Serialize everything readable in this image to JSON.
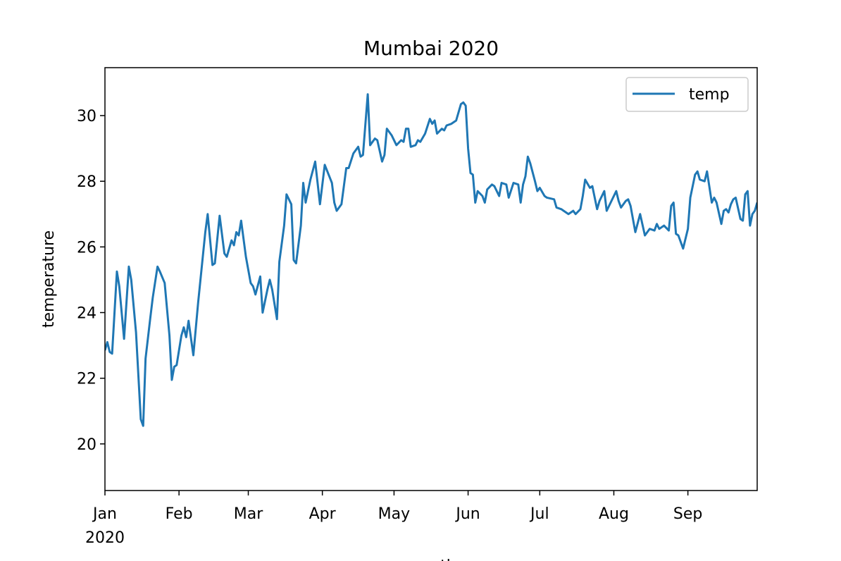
{
  "chart_data": {
    "type": "line",
    "title": "Mumbai 2020",
    "x_label": "month",
    "y_label": "temperature",
    "x_year_label": "2020",
    "x": [
      0,
      1,
      2,
      3,
      5,
      6,
      8,
      10,
      11,
      13,
      15,
      16,
      17,
      19,
      20,
      22,
      23,
      25,
      27,
      28,
      29,
      30,
      32,
      33,
      34,
      35,
      37,
      39,
      42,
      43,
      45,
      46,
      48,
      50,
      51,
      53,
      54,
      55,
      56,
      57,
      59,
      61,
      62,
      63,
      65,
      66,
      68,
      69,
      70,
      72,
      73,
      75,
      76,
      78,
      79,
      80,
      82,
      83,
      84,
      86,
      88,
      90,
      92,
      95,
      96,
      97,
      99,
      101,
      102,
      104,
      106,
      107,
      108,
      110,
      111,
      113,
      114,
      116,
      117,
      118,
      120,
      122,
      124,
      125,
      126,
      127,
      128,
      130,
      131,
      132,
      134,
      136,
      137,
      138,
      139,
      141,
      142,
      143,
      145,
      147,
      149,
      150,
      151,
      152,
      153,
      154,
      155,
      156,
      158,
      159,
      160,
      162,
      163,
      165,
      166,
      168,
      169,
      171,
      173,
      174,
      175,
      176,
      177,
      178,
      180,
      181,
      182,
      184,
      185,
      188,
      189,
      191,
      192,
      194,
      196,
      197,
      199,
      200,
      201,
      203,
      204,
      206,
      207,
      209,
      210,
      212,
      214,
      215,
      216,
      218,
      219,
      220,
      222,
      224,
      226,
      228,
      230,
      231,
      232,
      234,
      236,
      237,
      238,
      239,
      240,
      242,
      244,
      245,
      247,
      248,
      249,
      251,
      252,
      254,
      255,
      256,
      258,
      259,
      260,
      261,
      262,
      263,
      264,
      266,
      267,
      268,
      269,
      270,
      271,
      272,
      273
    ],
    "series": [
      {
        "name": "temp",
        "color": "#1f77b4",
        "values": [
          22.85,
          23.1,
          22.8,
          22.75,
          25.25,
          24.8,
          23.2,
          25.4,
          25,
          23.4,
          20.75,
          20.55,
          22.6,
          23.85,
          24.45,
          25.4,
          25.25,
          24.9,
          23.3,
          21.95,
          22.35,
          22.4,
          23.3,
          23.55,
          23.25,
          23.75,
          22.7,
          24.3,
          26.45,
          27,
          25.45,
          25.5,
          26.95,
          25.8,
          25.7,
          26.2,
          26.05,
          26.45,
          26.35,
          26.8,
          25.7,
          24.9,
          24.8,
          24.55,
          25.1,
          24,
          24.7,
          25,
          24.7,
          23.8,
          25.55,
          26.65,
          27.6,
          27.3,
          25.6,
          25.5,
          26.65,
          27.95,
          27.35,
          28.05,
          28.6,
          27.3,
          28.5,
          27.95,
          27.35,
          27.1,
          27.3,
          28.4,
          28.4,
          28.85,
          29.05,
          28.75,
          28.8,
          30.65,
          29.1,
          29.3,
          29.25,
          28.6,
          28.8,
          29.6,
          29.4,
          29.1,
          29.25,
          29.2,
          29.6,
          29.6,
          29.05,
          29.1,
          29.25,
          29.2,
          29.45,
          29.9,
          29.75,
          29.85,
          29.45,
          29.6,
          29.55,
          29.7,
          29.75,
          29.85,
          30.35,
          30.4,
          30.3,
          29,
          28.25,
          28.2,
          27.35,
          27.7,
          27.55,
          27.35,
          27.75,
          27.9,
          27.85,
          27.55,
          27.95,
          27.9,
          27.5,
          27.95,
          27.9,
          27.35,
          27.9,
          28.15,
          28.75,
          28.55,
          28,
          27.7,
          27.8,
          27.55,
          27.5,
          27.45,
          27.2,
          27.15,
          27.1,
          27,
          27.1,
          27,
          27.15,
          27.55,
          28.05,
          27.8,
          27.85,
          27.15,
          27.4,
          27.7,
          27.1,
          27.4,
          27.7,
          27.4,
          27.2,
          27.4,
          27.45,
          27.25,
          26.45,
          27,
          26.35,
          26.55,
          26.5,
          26.7,
          26.55,
          26.65,
          26.5,
          27.25,
          27.35,
          26.4,
          26.35,
          25.95,
          26.55,
          27.5,
          28.2,
          28.3,
          28.05,
          28,
          28.3,
          27.35,
          27.5,
          27.35,
          26.7,
          27.1,
          27.15,
          27.05,
          27.3,
          27.45,
          27.5,
          26.85,
          26.8,
          27.6,
          27.7,
          26.65,
          27,
          27.1,
          27.35
        ]
      }
    ],
    "xlim": [
      0,
      273
    ],
    "xticks": [
      {
        "value": 0,
        "label": "Jan"
      },
      {
        "value": 31,
        "label": "Feb"
      },
      {
        "value": 60,
        "label": "Mar"
      },
      {
        "value": 91,
        "label": "Apr"
      },
      {
        "value": 121,
        "label": "May"
      },
      {
        "value": 152,
        "label": "Jun"
      },
      {
        "value": 182,
        "label": "Jul"
      },
      {
        "value": 213,
        "label": "Aug"
      },
      {
        "value": 244,
        "label": "Sep"
      }
    ],
    "ylim": [
      18.58,
      31.46
    ],
    "yticks": [
      20,
      22,
      24,
      26,
      28,
      30
    ],
    "legend": "upper right"
  }
}
